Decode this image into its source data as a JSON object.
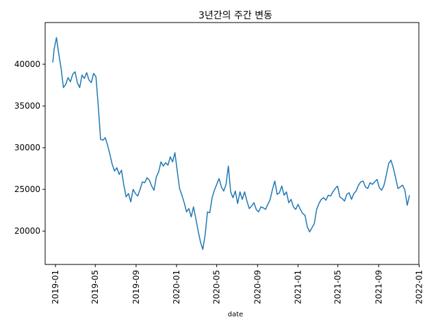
{
  "chart_data": {
    "type": "line",
    "title": "3년간의 주간 변동",
    "xlabel": "date",
    "ylabel": "",
    "xlim": [
      "2018-12-01",
      "2021-12-31"
    ],
    "ylim": [
      16000,
      45000
    ],
    "grid": false,
    "legend": "none",
    "line_color": "#1f77b4",
    "x_ticks": [
      "2019-01",
      "2019-05",
      "2019-09",
      "2020-01",
      "2020-05",
      "2020-09",
      "2021-01",
      "2021-05",
      "2021-09",
      "2022-01"
    ],
    "y_ticks": [
      20000,
      25000,
      30000,
      35000,
      40000
    ],
    "series": [
      {
        "x": [
          "2018-12-24",
          "2018-12-28",
          "2019-01-04",
          "2019-01-10",
          "2019-01-18",
          "2019-01-25",
          "2019-02-01",
          "2019-02-08",
          "2019-02-15",
          "2019-02-22",
          "2019-03-01",
          "2019-03-08",
          "2019-03-15",
          "2019-03-22",
          "2019-03-29",
          "2019-04-05",
          "2019-04-12",
          "2019-04-19",
          "2019-04-26",
          "2019-05-03",
          "2019-05-10",
          "2019-05-17",
          "2019-05-24",
          "2019-05-31",
          "2019-06-07",
          "2019-06-14",
          "2019-06-21",
          "2019-06-28",
          "2019-07-05",
          "2019-07-12",
          "2019-07-19",
          "2019-07-26",
          "2019-08-02",
          "2019-08-09",
          "2019-08-16",
          "2019-08-23",
          "2019-08-30",
          "2019-09-06",
          "2019-09-13",
          "2019-09-20",
          "2019-09-27",
          "2019-10-04",
          "2019-10-11",
          "2019-10-18",
          "2019-10-25",
          "2019-11-01",
          "2019-11-08",
          "2019-11-15",
          "2019-11-22",
          "2019-11-29",
          "2019-12-06",
          "2019-12-13",
          "2019-12-20",
          "2019-12-27",
          "2020-01-03",
          "2020-01-10",
          "2020-01-17",
          "2020-01-24",
          "2020-01-31",
          "2020-02-07",
          "2020-02-14",
          "2020-02-21",
          "2020-02-28",
          "2020-03-06",
          "2020-03-13",
          "2020-03-20",
          "2020-03-27",
          "2020-04-03",
          "2020-04-10",
          "2020-04-17",
          "2020-04-24",
          "2020-05-01",
          "2020-05-08",
          "2020-05-15",
          "2020-05-22",
          "2020-05-29",
          "2020-06-05",
          "2020-06-12",
          "2020-06-19",
          "2020-06-26",
          "2020-07-03",
          "2020-07-10",
          "2020-07-17",
          "2020-07-24",
          "2020-07-31",
          "2020-08-07",
          "2020-08-14",
          "2020-08-21",
          "2020-08-28",
          "2020-09-04",
          "2020-09-11",
          "2020-09-18",
          "2020-09-25",
          "2020-10-02",
          "2020-10-09",
          "2020-10-16",
          "2020-10-23",
          "2020-10-30",
          "2020-11-06",
          "2020-11-13",
          "2020-11-20",
          "2020-11-27",
          "2020-12-04",
          "2020-12-11",
          "2020-12-18",
          "2020-12-25",
          "2021-01-01",
          "2021-01-08",
          "2021-01-15",
          "2021-01-22",
          "2021-01-29",
          "2021-02-05",
          "2021-02-12",
          "2021-02-19",
          "2021-02-26",
          "2021-03-05",
          "2021-03-12",
          "2021-03-19",
          "2021-03-26",
          "2021-04-02",
          "2021-04-09",
          "2021-04-16",
          "2021-04-23",
          "2021-04-30",
          "2021-05-07",
          "2021-05-14",
          "2021-05-21",
          "2021-05-28",
          "2021-06-04",
          "2021-06-11",
          "2021-06-18",
          "2021-06-25",
          "2021-07-02",
          "2021-07-09",
          "2021-07-16",
          "2021-07-23",
          "2021-07-30",
          "2021-08-06",
          "2021-08-13",
          "2021-08-20",
          "2021-08-27",
          "2021-09-03",
          "2021-09-10",
          "2021-09-17",
          "2021-09-24",
          "2021-10-01",
          "2021-10-08",
          "2021-10-15",
          "2021-10-22",
          "2021-10-29",
          "2021-11-05",
          "2021-11-12",
          "2021-11-19",
          "2021-11-26",
          "2021-12-03"
        ],
        "y": [
          40200,
          41800,
          43200,
          41500,
          39500,
          37200,
          37600,
          38400,
          37900,
          38800,
          39100,
          37800,
          37200,
          38700,
          38300,
          39000,
          38100,
          37800,
          38900,
          38500,
          35000,
          31000,
          30900,
          31200,
          30300,
          29200,
          28000,
          27200,
          27600,
          26800,
          27300,
          25500,
          24100,
          24500,
          23500,
          25000,
          24500,
          24200,
          25000,
          25900,
          25800,
          26400,
          26100,
          25400,
          24900,
          26500,
          27100,
          28300,
          27800,
          28200,
          27900,
          28900,
          28300,
          29400,
          27200,
          25100,
          24300,
          23400,
          22300,
          22700,
          21700,
          22900,
          21500,
          20000,
          18700,
          17800,
          19500,
          22300,
          22200,
          24000,
          24900,
          25600,
          26300,
          25300,
          24800,
          25600,
          27800,
          24700,
          24000,
          24800,
          23300,
          24700,
          23800,
          24700,
          23600,
          22700,
          23000,
          23400,
          22600,
          22300,
          22900,
          22800,
          22600,
          23200,
          23800,
          25000,
          26000,
          24400,
          24600,
          25400,
          24300,
          24700,
          23400,
          23800,
          22900,
          22600,
          23200,
          22600,
          22100,
          21900,
          20500,
          19900,
          20400,
          20900,
          22600,
          23300,
          23800,
          24000,
          23700,
          24300,
          24200,
          24700,
          25100,
          25400,
          24100,
          23900,
          23600,
          24400,
          24600,
          23800,
          24500,
          24800,
          25500,
          25900,
          26000,
          25300,
          25100,
          25800,
          25600,
          25900,
          26200,
          25200,
          24900,
          25500,
          26700,
          28100,
          28500,
          27600,
          26400,
          25100,
          25300,
          25500,
          24900,
          23100,
          24300
        ]
      }
    ]
  }
}
